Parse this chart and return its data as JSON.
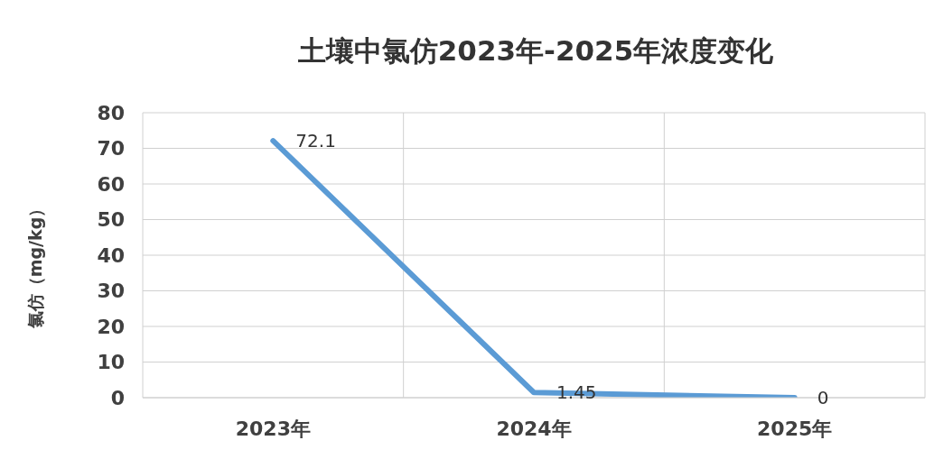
{
  "chart_data": {
    "type": "line",
    "title": "土壤中氯仿2023年-2025年浓度变化",
    "ylabel": "氯仿（mg/kg）",
    "categories": [
      "2023年",
      "2024年",
      "2025年"
    ],
    "series": [
      {
        "color": "#5b9bd5",
        "values": [
          72.1,
          1.45,
          0
        ]
      }
    ],
    "ylim": [
      0,
      80
    ],
    "yticks": [
      0,
      10,
      20,
      30,
      40,
      50,
      60,
      70,
      80
    ],
    "grid": true,
    "legend": false,
    "marker": "none",
    "line_style": "solid",
    "data_labels": true
  }
}
